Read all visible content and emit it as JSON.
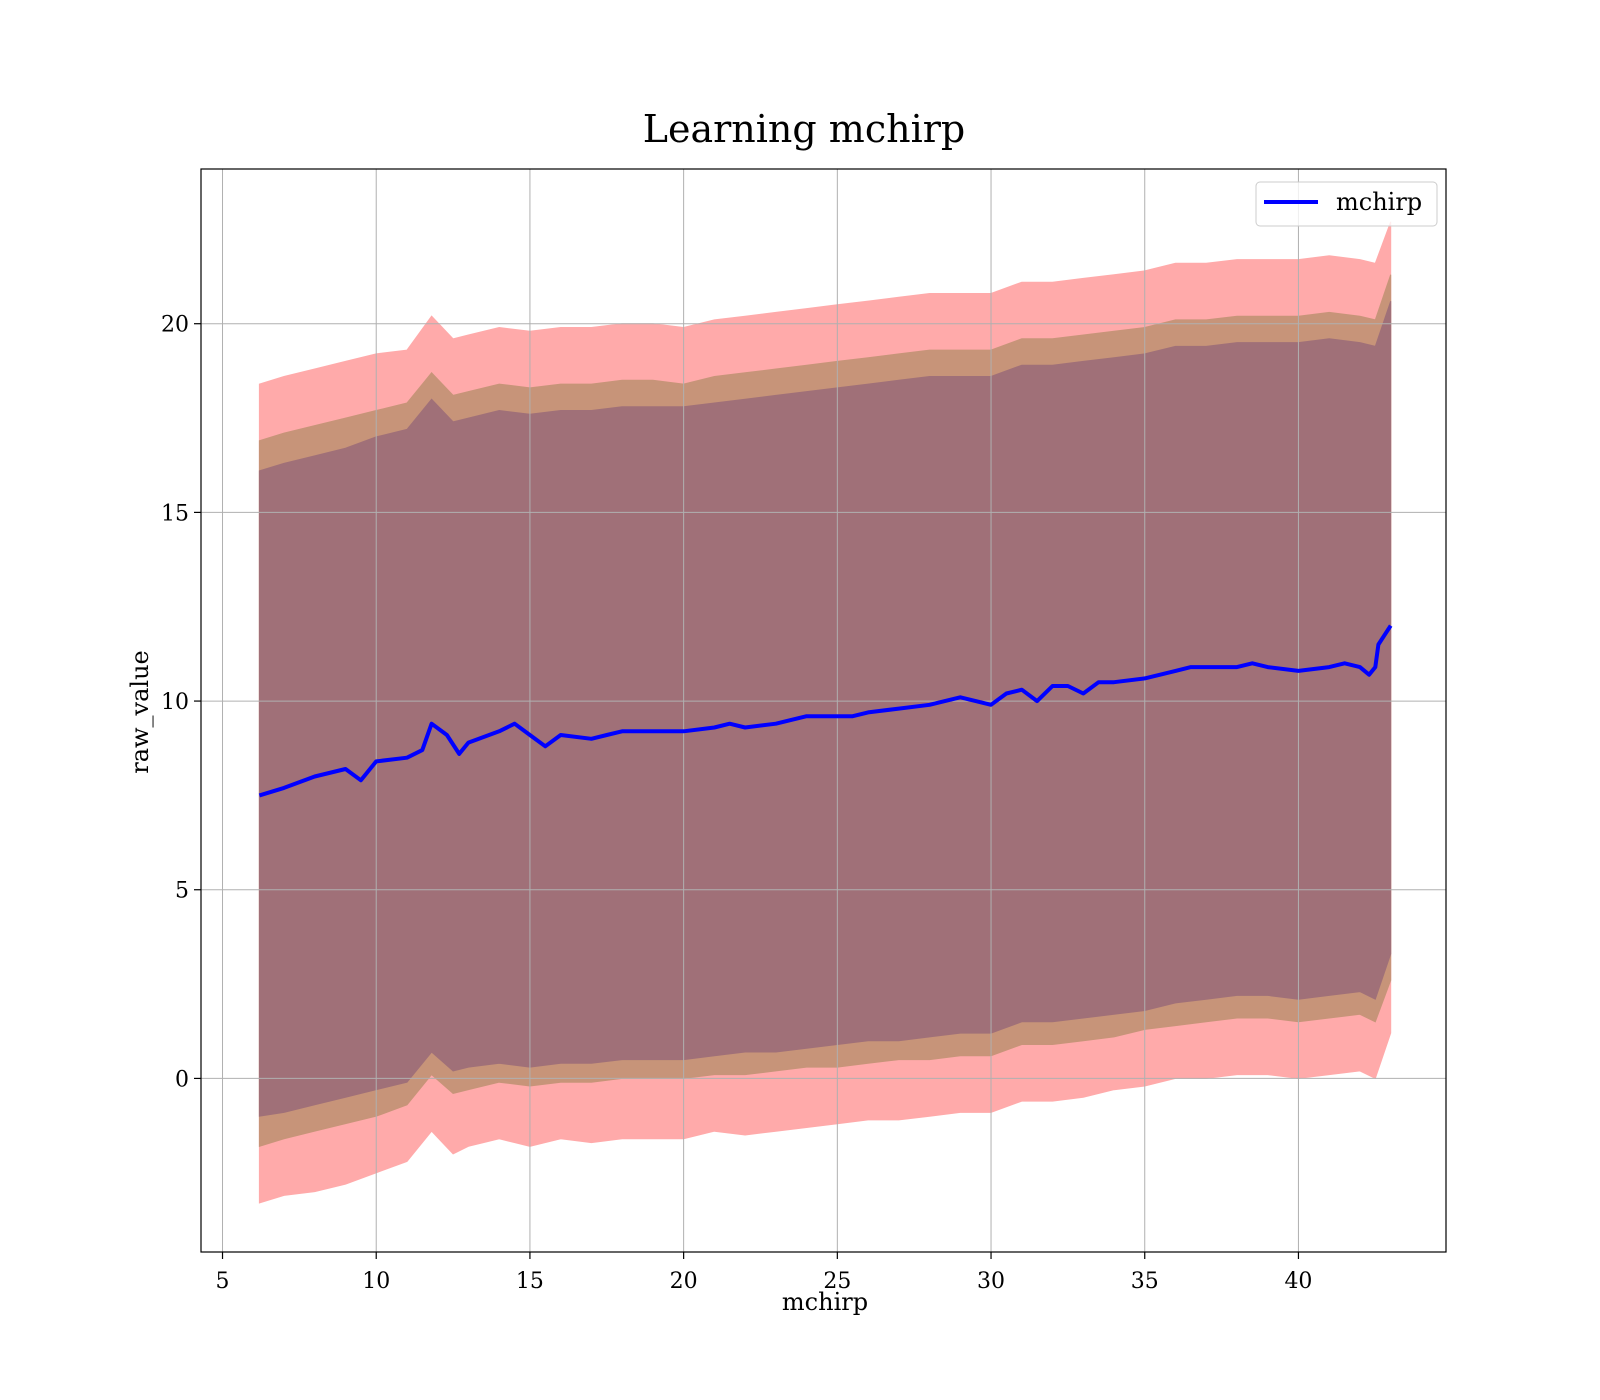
{
  "chart_data": {
    "type": "line",
    "title": "Learning mchirp",
    "xlabel": "mchirp",
    "ylabel": "raw_value",
    "xlim": [
      4.3,
      44.8
    ],
    "ylim": [
      -4.6,
      24.1
    ],
    "x_ticks": [
      5,
      10,
      15,
      20,
      25,
      30,
      35,
      40
    ],
    "y_ticks": [
      0,
      5,
      10,
      15,
      20
    ],
    "grid": true,
    "legend": {
      "position": "top-right",
      "entries": [
        "mchirp"
      ]
    },
    "colors": {
      "line": "#0000ff",
      "band_outer": "#ffaaaa",
      "band_middle": "#c79479",
      "band_inner": "#a07078"
    },
    "series": [
      {
        "name": "mchirp",
        "x": [
          6.2,
          7.0,
          8.0,
          9.0,
          9.5,
          10.0,
          11.0,
          11.5,
          11.8,
          12.3,
          12.7,
          13.0,
          14.0,
          14.5,
          15.0,
          15.5,
          16.0,
          17.0,
          17.5,
          18.0,
          19.0,
          20.0,
          21.0,
          21.5,
          22.0,
          23.0,
          23.5,
          24.0,
          25.0,
          25.5,
          26.0,
          27.0,
          28.0,
          28.5,
          29.0,
          29.5,
          30.0,
          30.5,
          31.0,
          31.5,
          32.0,
          32.5,
          33.0,
          33.5,
          34.0,
          35.0,
          35.5,
          36.0,
          36.5,
          37.0,
          38.0,
          38.5,
          39.0,
          40.0,
          41.0,
          41.5,
          42.0,
          42.3,
          42.5,
          42.6,
          43.0
        ],
        "y": [
          7.5,
          7.7,
          8.0,
          8.2,
          7.9,
          8.4,
          8.5,
          8.7,
          9.4,
          9.1,
          8.6,
          8.9,
          9.2,
          9.4,
          9.1,
          8.8,
          9.1,
          9.0,
          9.1,
          9.2,
          9.2,
          9.2,
          9.3,
          9.4,
          9.3,
          9.4,
          9.5,
          9.6,
          9.6,
          9.6,
          9.7,
          9.8,
          9.9,
          10.0,
          10.1,
          10.0,
          9.9,
          10.2,
          10.3,
          10.0,
          10.4,
          10.4,
          10.2,
          10.5,
          10.5,
          10.6,
          10.7,
          10.8,
          10.9,
          10.9,
          10.9,
          11.0,
          10.9,
          10.8,
          10.9,
          11.0,
          10.9,
          10.7,
          10.9,
          11.5,
          12.0
        ]
      }
    ],
    "bands": [
      {
        "x": [
          6.2,
          7.0,
          8.0,
          9.0,
          10.0,
          11.0,
          11.8,
          12.5,
          13.0,
          14.0,
          15.0,
          16.0,
          17.0,
          18.0,
          19.0,
          20.0,
          21.0,
          22.0,
          23.0,
          24.0,
          25.0,
          26.0,
          27.0,
          28.0,
          29.0,
          30.0,
          31.0,
          32.0,
          33.0,
          34.0,
          35.0,
          36.0,
          37.0,
          38.0,
          39.0,
          40.0,
          41.0,
          42.0,
          42.5,
          43.0
        ],
        "lower": [
          -3.3,
          -3.1,
          -3.0,
          -2.8,
          -2.5,
          -2.2,
          -1.4,
          -2.0,
          -1.8,
          -1.6,
          -1.8,
          -1.6,
          -1.7,
          -1.6,
          -1.6,
          -1.6,
          -1.4,
          -1.5,
          -1.4,
          -1.3,
          -1.2,
          -1.1,
          -1.1,
          -1.0,
          -0.9,
          -0.9,
          -0.6,
          -0.6,
          -0.5,
          -0.3,
          -0.2,
          0.0,
          0.0,
          0.1,
          0.1,
          0.0,
          0.1,
          0.2,
          0.0,
          1.2
        ],
        "upper": [
          18.4,
          18.6,
          18.8,
          19.0,
          19.2,
          19.3,
          20.2,
          19.6,
          19.7,
          19.9,
          19.8,
          19.9,
          19.9,
          20.0,
          20.0,
          19.9,
          20.1,
          20.2,
          20.3,
          20.4,
          20.5,
          20.6,
          20.7,
          20.8,
          20.8,
          20.8,
          21.1,
          21.1,
          21.2,
          21.3,
          21.4,
          21.6,
          21.6,
          21.7,
          21.7,
          21.7,
          21.8,
          21.7,
          21.6,
          22.7
        ]
      },
      {
        "x": [
          6.2,
          7.0,
          8.0,
          9.0,
          10.0,
          11.0,
          11.8,
          12.5,
          13.0,
          14.0,
          15.0,
          16.0,
          17.0,
          18.0,
          19.0,
          20.0,
          21.0,
          22.0,
          23.0,
          24.0,
          25.0,
          26.0,
          27.0,
          28.0,
          29.0,
          30.0,
          31.0,
          32.0,
          33.0,
          34.0,
          35.0,
          36.0,
          37.0,
          38.0,
          39.0,
          40.0,
          41.0,
          42.0,
          42.5,
          43.0
        ],
        "lower": [
          -1.8,
          -1.6,
          -1.4,
          -1.2,
          -1.0,
          -0.7,
          0.1,
          -0.4,
          -0.3,
          -0.1,
          -0.2,
          -0.1,
          -0.1,
          0.0,
          0.0,
          0.0,
          0.1,
          0.1,
          0.2,
          0.3,
          0.3,
          0.4,
          0.5,
          0.5,
          0.6,
          0.6,
          0.9,
          0.9,
          1.0,
          1.1,
          1.3,
          1.4,
          1.5,
          1.6,
          1.6,
          1.5,
          1.6,
          1.7,
          1.5,
          2.6
        ],
        "upper": [
          16.9,
          17.1,
          17.3,
          17.5,
          17.7,
          17.9,
          18.7,
          18.1,
          18.2,
          18.4,
          18.3,
          18.4,
          18.4,
          18.5,
          18.5,
          18.4,
          18.6,
          18.7,
          18.8,
          18.9,
          19.0,
          19.1,
          19.2,
          19.3,
          19.3,
          19.3,
          19.6,
          19.6,
          19.7,
          19.8,
          19.9,
          20.1,
          20.1,
          20.2,
          20.2,
          20.2,
          20.3,
          20.2,
          20.1,
          21.3
        ]
      },
      {
        "x": [
          6.2,
          7.0,
          8.0,
          9.0,
          10.0,
          11.0,
          11.8,
          12.5,
          13.0,
          14.0,
          15.0,
          16.0,
          17.0,
          18.0,
          19.0,
          20.0,
          21.0,
          22.0,
          23.0,
          24.0,
          25.0,
          26.0,
          27.0,
          28.0,
          29.0,
          30.0,
          31.0,
          32.0,
          33.0,
          34.0,
          35.0,
          36.0,
          37.0,
          38.0,
          39.0,
          40.0,
          41.0,
          42.0,
          42.5,
          43.0
        ],
        "lower": [
          -1.0,
          -0.9,
          -0.7,
          -0.5,
          -0.3,
          -0.1,
          0.7,
          0.2,
          0.3,
          0.4,
          0.3,
          0.4,
          0.4,
          0.5,
          0.5,
          0.5,
          0.6,
          0.7,
          0.7,
          0.8,
          0.9,
          1.0,
          1.0,
          1.1,
          1.2,
          1.2,
          1.5,
          1.5,
          1.6,
          1.7,
          1.8,
          2.0,
          2.1,
          2.2,
          2.2,
          2.1,
          2.2,
          2.3,
          2.1,
          3.3
        ],
        "upper": [
          16.1,
          16.3,
          16.5,
          16.7,
          17.0,
          17.2,
          18.0,
          17.4,
          17.5,
          17.7,
          17.6,
          17.7,
          17.7,
          17.8,
          17.8,
          17.8,
          17.9,
          18.0,
          18.1,
          18.2,
          18.3,
          18.4,
          18.5,
          18.6,
          18.6,
          18.6,
          18.9,
          18.9,
          19.0,
          19.1,
          19.2,
          19.4,
          19.4,
          19.5,
          19.5,
          19.5,
          19.6,
          19.5,
          19.4,
          20.6
        ]
      }
    ]
  }
}
